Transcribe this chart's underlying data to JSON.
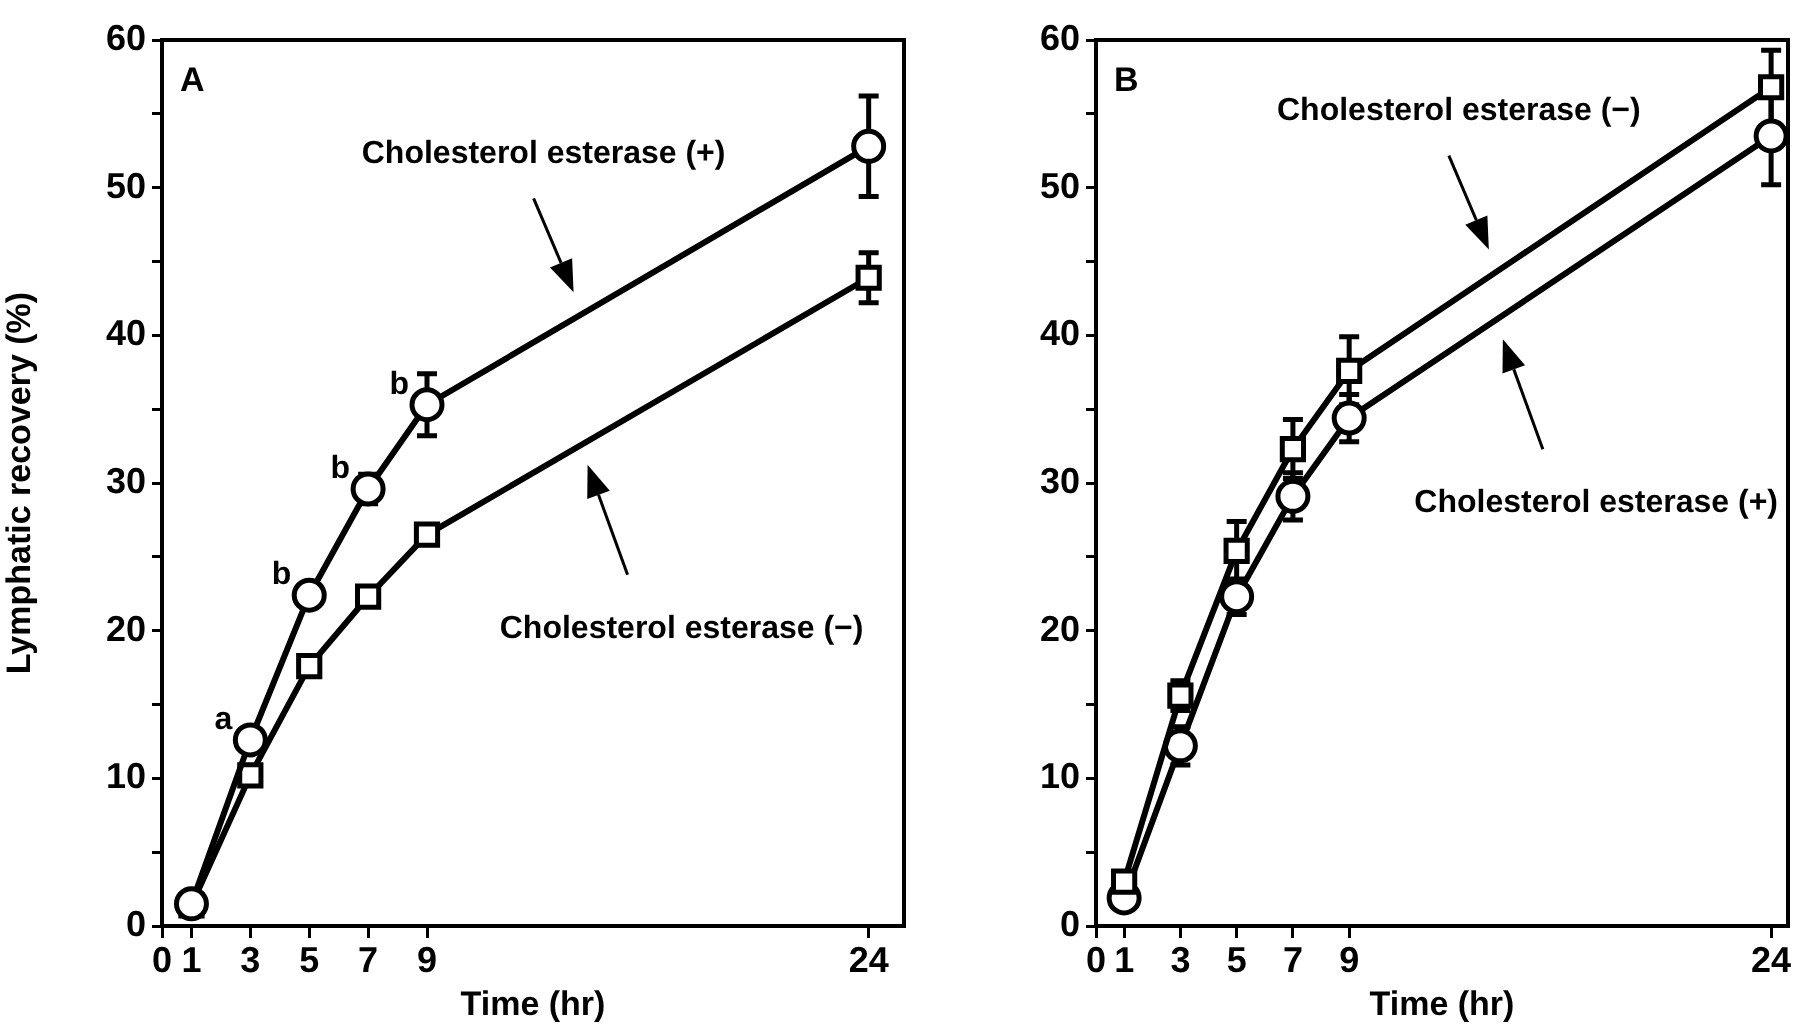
{
  "chart_data": [
    {
      "type": "line",
      "xlabel": "Time (hr)",
      "ylabel": "Lymphatic recovery (%)",
      "x": [
        1,
        3,
        5,
        7,
        9,
        24
      ],
      "xlim": [
        0,
        25.2
      ],
      "xticks": [
        0,
        1,
        3,
        5,
        7,
        9,
        24
      ],
      "ylim": [
        0,
        60
      ],
      "yticks": [
        0,
        {
          "value": 5,
          "label": null
        },
        10,
        {
          "value": 15,
          "label": null
        },
        20,
        {
          "value": 25,
          "label": null
        },
        30,
        {
          "value": 35,
          "label": null
        },
        40,
        {
          "value": 45,
          "label": null
        },
        50,
        {
          "value": 55,
          "label": null
        },
        60
      ],
      "grid": false,
      "legend": false,
      "line_style": "solid",
      "series": [
        {
          "name": "Cholesterol esterase (+)",
          "color": "#000000",
          "marker": "circle",
          "values": [
            1.5,
            12.6,
            22.4,
            29.6,
            35.3,
            52.8
          ],
          "errors": [
            null,
            null,
            null,
            1.0,
            2.1,
            3.4
          ]
        },
        {
          "name": "Cholesterol esterase (−)",
          "color": "#000000",
          "marker": "square",
          "values": [
            1.4,
            10.2,
            17.6,
            22.3,
            26.5,
            43.9
          ],
          "errors": [
            null,
            null,
            null,
            null,
            null,
            1.7
          ]
        }
      ],
      "annotations": [
        "A",
        {
          "text": "a",
          "x": 3,
          "y": 12.6
        },
        {
          "text": "b",
          "x": 5,
          "y": 22.4
        },
        {
          "text": "b",
          "x": 7,
          "y": 29.6
        },
        {
          "text": "b",
          "x": 9,
          "y": 35.3
        }
      ]
    },
    {
      "type": "line",
      "xlabel": "Time (hr)",
      "x": [
        1,
        3,
        5,
        7,
        9,
        24
      ],
      "xlim": [
        0,
        24.6
      ],
      "xticks": [
        0,
        1,
        3,
        5,
        7,
        9,
        24
      ],
      "ylim": [
        0,
        60
      ],
      "yticks": [
        0,
        {
          "value": 5,
          "label": null
        },
        10,
        {
          "value": 15,
          "label": null
        },
        20,
        {
          "value": 25,
          "label": null
        },
        30,
        {
          "value": 35,
          "label": null
        },
        40,
        {
          "value": 45,
          "label": null
        },
        50,
        {
          "value": 55,
          "label": null
        },
        60
      ],
      "grid": false,
      "legend": false,
      "line_style": "solid",
      "series": [
        {
          "name": "Cholesterol esterase (−)",
          "color": "#000000",
          "marker": "square",
          "values": [
            3.0,
            15.6,
            25.4,
            32.3,
            37.6,
            56.8
          ],
          "errors": [
            null,
            1.0,
            2.0,
            2.0,
            2.3,
            2.5
          ]
        },
        {
          "name": "Cholesterol esterase (+)",
          "color": "#000000",
          "marker": "circle",
          "values": [
            1.9,
            12.2,
            22.3,
            29.1,
            34.4,
            53.5
          ],
          "errors": [
            null,
            1.3,
            1.2,
            1.6,
            1.6,
            3.3
          ]
        }
      ],
      "annotations": [
        "B"
      ]
    }
  ]
}
